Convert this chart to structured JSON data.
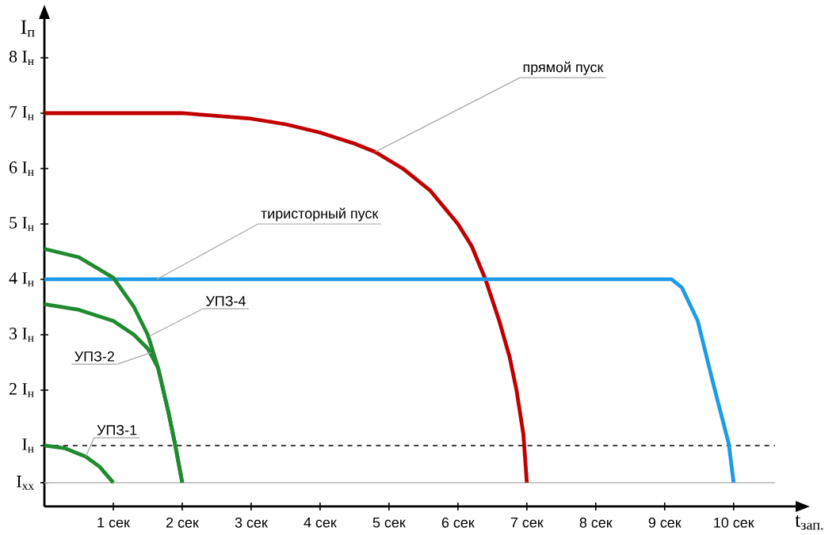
{
  "chart_data": {
    "type": "line",
    "xlabel": "t$_{зап.}$",
    "ylabel": "I$_{п}$",
    "xlim": [
      0,
      10.9
    ],
    "ylim": [
      -0.1,
      8.7
    ],
    "xticks": [
      {
        "value": 1,
        "label": "1 сек"
      },
      {
        "value": 2,
        "label": "2 сек"
      },
      {
        "value": 3,
        "label": "3 сек"
      },
      {
        "value": 4,
        "label": "4 сек"
      },
      {
        "value": 5,
        "label": "5 сек"
      },
      {
        "value": 6,
        "label": "6 сек"
      },
      {
        "value": 7,
        "label": "7 сек"
      },
      {
        "value": 8,
        "label": "8 сек"
      },
      {
        "value": 9,
        "label": "9 сек"
      },
      {
        "value": 10,
        "label": "10 сек"
      }
    ],
    "yticks": [
      {
        "value": 0.33,
        "label": "I$_{xx}$"
      },
      {
        "value": 1,
        "label": "I$_{н}$"
      },
      {
        "value": 2,
        "label": "2 I$_{н}$"
      },
      {
        "value": 3,
        "label": "3 I$_{н}$"
      },
      {
        "value": 4,
        "label": "4 I$_{н}$"
      },
      {
        "value": 5,
        "label": "5 I$_{н}$"
      },
      {
        "value": 6,
        "label": "6 I$_{н}$"
      },
      {
        "value": 7,
        "label": "7 I$_{н}$"
      },
      {
        "value": 8,
        "label": "8 I$_{н}$"
      }
    ],
    "ref_lines": [
      {
        "axis": "y",
        "value": 1,
        "color": "#404040",
        "line_style": "dashed"
      },
      {
        "axis": "y",
        "value": 0.33,
        "color": "#c0c0c0",
        "line_style": "solid"
      }
    ],
    "series": [
      {
        "name": "прямой пуск",
        "color": "#c00000",
        "x": [
          0,
          1,
          2,
          3,
          3.5,
          4,
          4.5,
          4.8,
          5.2,
          5.6,
          6,
          6.2,
          6.4,
          6.6,
          6.75,
          6.85,
          6.95,
          7
        ],
        "values": [
          7,
          7,
          7,
          6.9,
          6.8,
          6.65,
          6.45,
          6.3,
          6.0,
          5.6,
          5.0,
          4.6,
          4.0,
          3.25,
          2.6,
          2.0,
          1.2,
          0.33
        ]
      },
      {
        "name": "тиристорный пуск",
        "color": "#1e9be6",
        "x": [
          0,
          9.1,
          9.25,
          9.48,
          9.7,
          9.93,
          10
        ],
        "values": [
          4,
          4,
          3.85,
          3.25,
          2.14,
          1.03,
          0.33
        ]
      },
      {
        "name": "УПЗ-4",
        "color": "#1f8a2e",
        "x": [
          0,
          0.5,
          1,
          1.3,
          1.5,
          1.65,
          1.8,
          1.9,
          2
        ],
        "values": [
          4.55,
          4.4,
          4.03,
          3.5,
          3.0,
          2.4,
          1.6,
          1.0,
          0.33
        ]
      },
      {
        "name": "УПЗ-2",
        "color": "#1f8a2e",
        "x": [
          0,
          0.5,
          1,
          1.3,
          1.5,
          1.65,
          1.8,
          1.9,
          2
        ],
        "values": [
          3.55,
          3.45,
          3.25,
          3.0,
          2.75,
          2.4,
          1.6,
          1.0,
          0.33
        ]
      },
      {
        "name": "УПЗ-1",
        "color": "#1f8a2e",
        "x": [
          0,
          0.3,
          0.6,
          0.8,
          1
        ],
        "values": [
          1,
          0.95,
          0.8,
          0.62,
          0.33
        ]
      }
    ]
  }
}
